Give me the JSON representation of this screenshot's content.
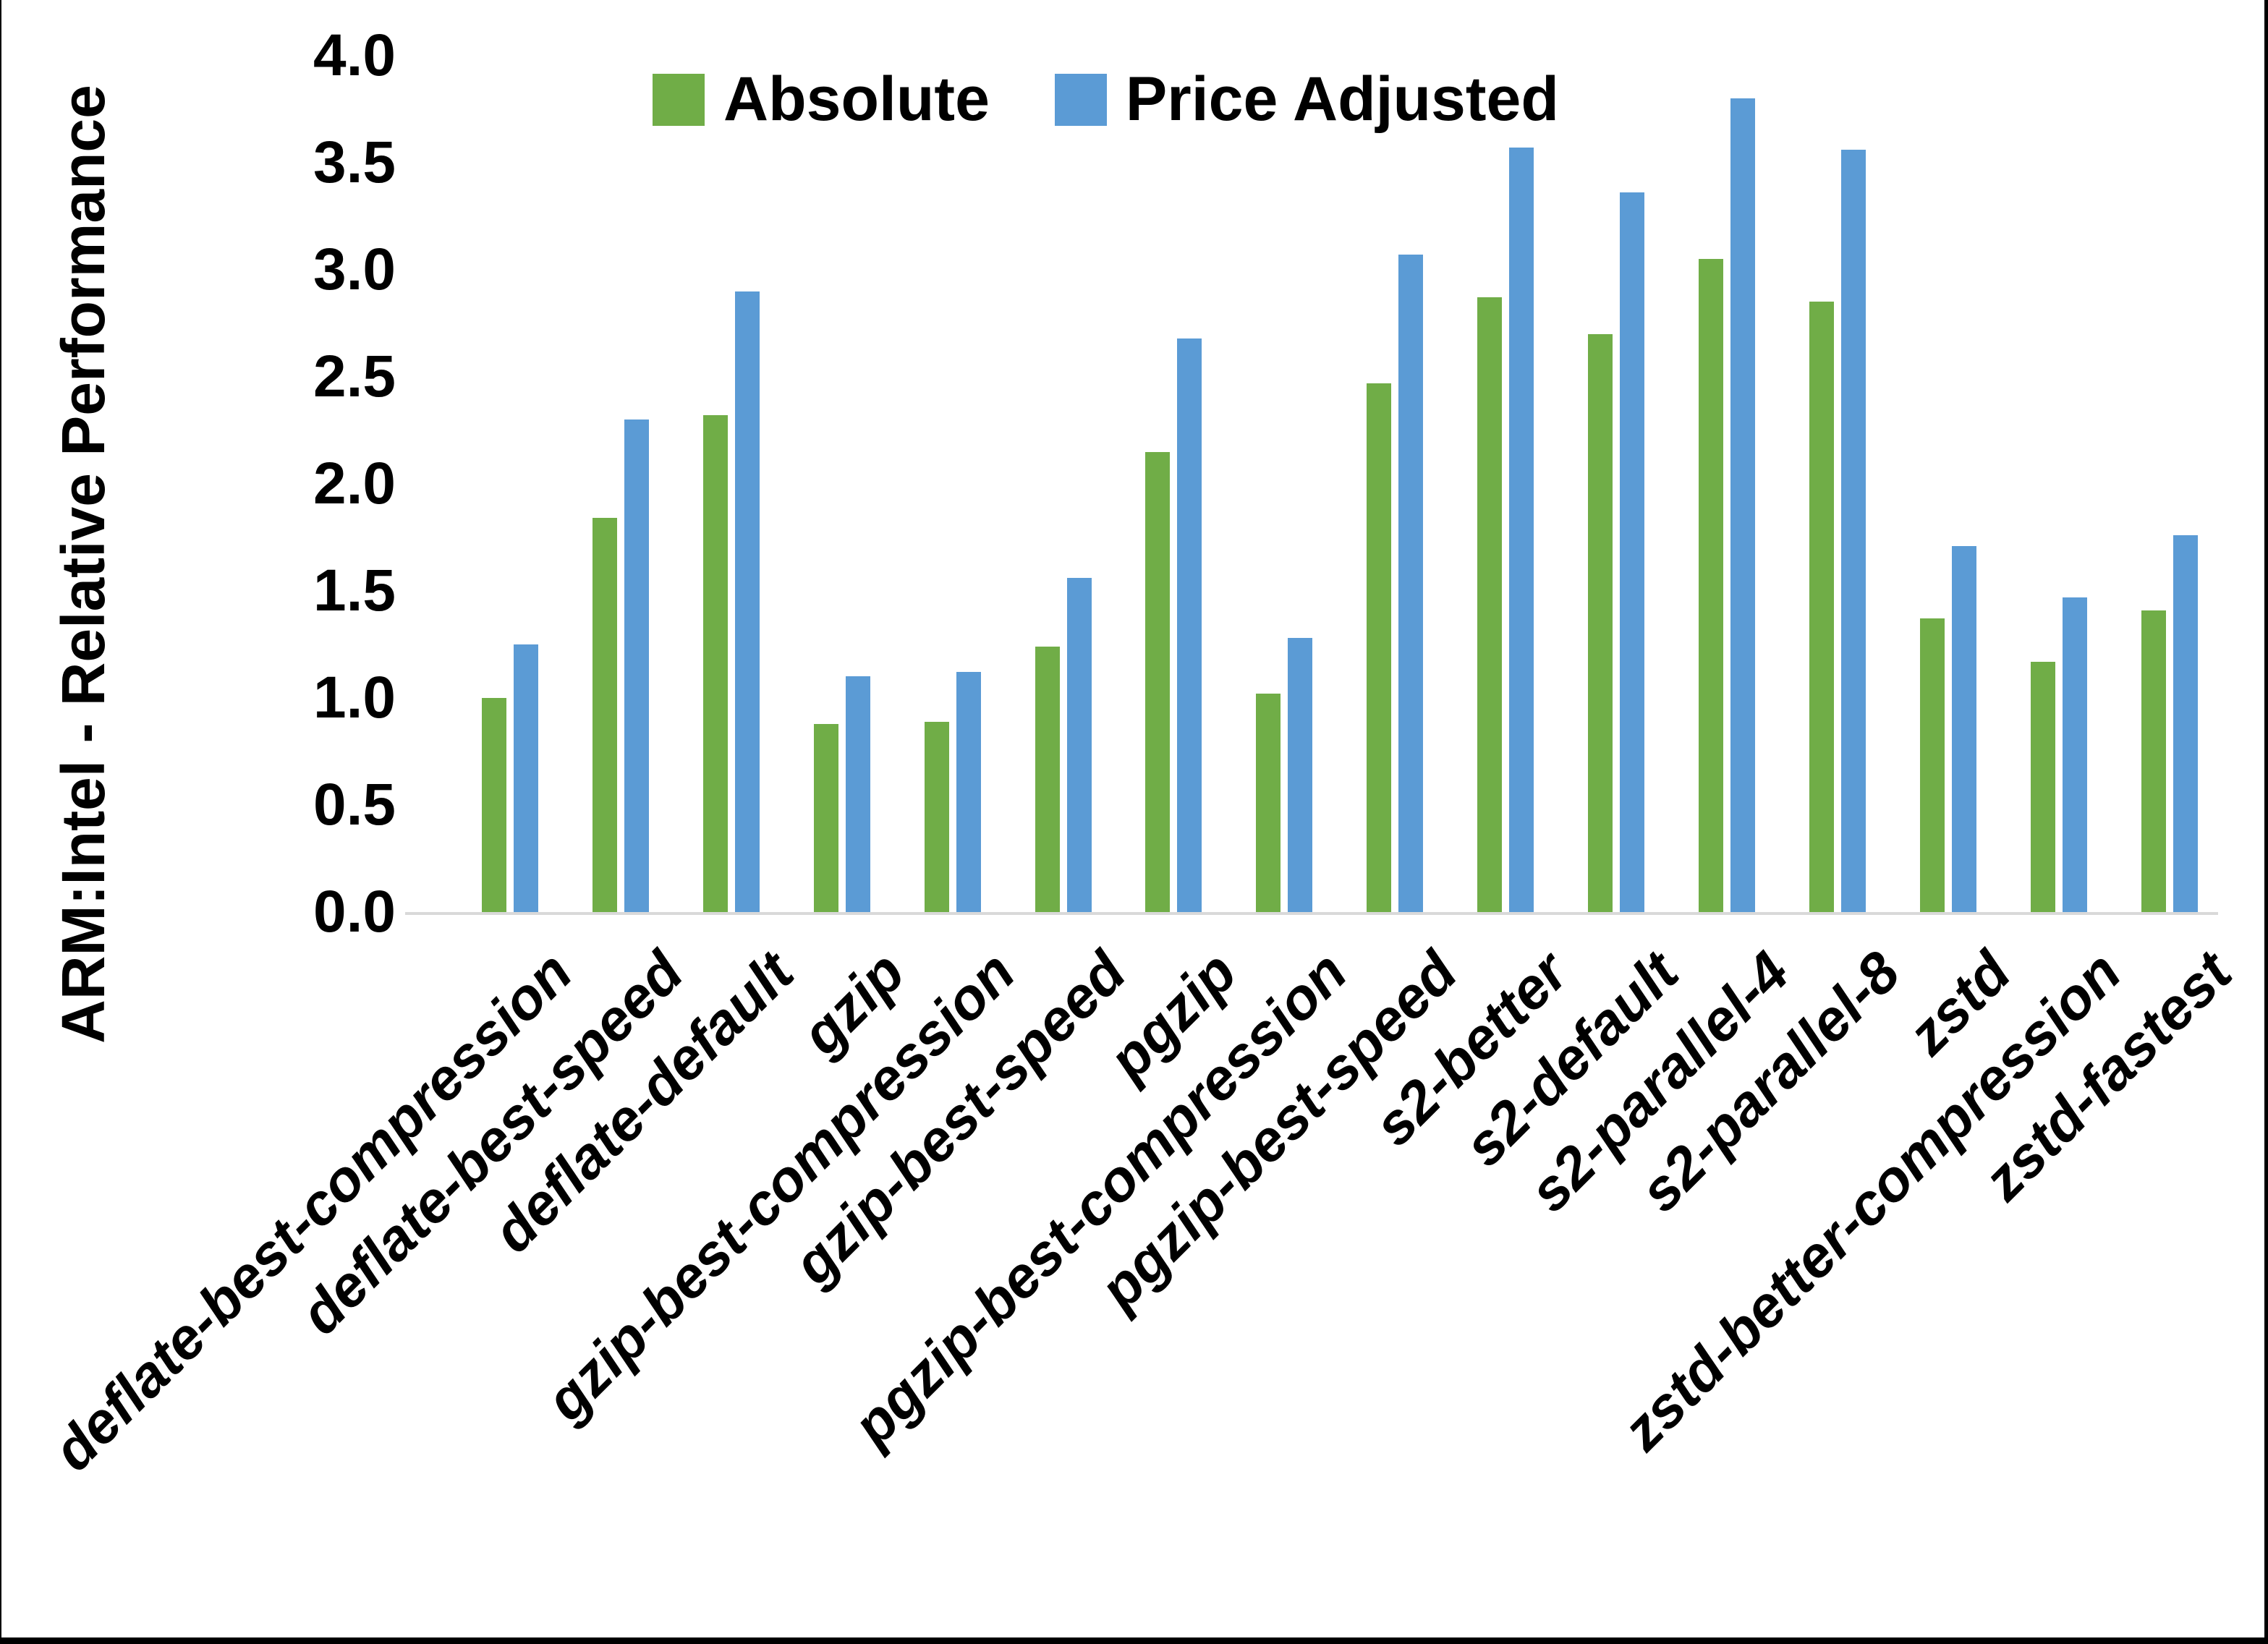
{
  "chart_data": {
    "type": "bar",
    "title": "",
    "ylabel": "ARM:Intel - Relative Performance",
    "xlabel": "",
    "ylim": [
      0.0,
      4.0
    ],
    "ytick_step": 0.5,
    "ytick_labels": [
      "0.0",
      "0.5",
      "1.0",
      "1.5",
      "2.0",
      "2.5",
      "3.0",
      "3.5",
      "4.0"
    ],
    "grid": "off",
    "legend_position": "top-center-inside",
    "categories": [
      "deflate-best-compression",
      "deflate-best-speed",
      "deflate-default",
      "gzip",
      "gzip-best-compression",
      "gzip-best-speed",
      "pgzip",
      "pgzip-best-compression",
      "pgzip-best-speed",
      "s2-better",
      "s2-default",
      "s2-parallel-4",
      "s2-parallel-8",
      "zstd",
      "zstd-better-compression",
      "zstd-fastest"
    ],
    "series": [
      {
        "name": "Absolute",
        "color": "#70AD47",
        "values": [
          1.0,
          1.84,
          2.32,
          0.88,
          0.89,
          1.24,
          2.15,
          1.02,
          2.47,
          2.87,
          2.7,
          3.05,
          2.85,
          1.37,
          1.17,
          1.41
        ]
      },
      {
        "name": "Price Adjusted",
        "color": "#5B9BD5",
        "values": [
          1.25,
          2.3,
          2.9,
          1.1,
          1.12,
          1.56,
          2.68,
          1.28,
          3.07,
          3.57,
          3.36,
          3.8,
          3.56,
          1.71,
          1.47,
          1.76
        ]
      }
    ],
    "axis_line_color": "#d9d9d9"
  }
}
